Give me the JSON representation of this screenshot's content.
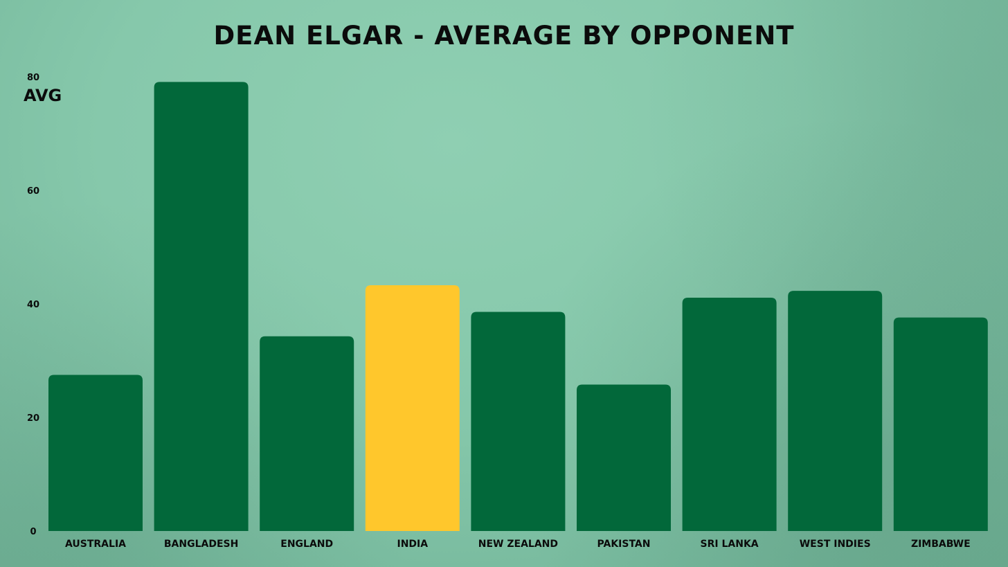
{
  "chart_data": {
    "type": "bar",
    "title": "DEAN ELGAR - AVERAGE BY OPPONENT",
    "xlabel": "",
    "ylabel": "AVG",
    "ylim": [
      0,
      80
    ],
    "yticks": [
      "0",
      "20",
      "40",
      "60",
      "80"
    ],
    "grid": false,
    "categories": [
      "AUSTRALIA",
      "BANGLADESH",
      "ENGLAND",
      "INDIA",
      "NEW ZEALAND",
      "PAKISTAN",
      "SRI LANKA",
      "WEST INDIES",
      "ZIMBABWE"
    ],
    "values": [
      27.5,
      79.1,
      34.3,
      43.3,
      38.6,
      25.8,
      41.1,
      42.3,
      37.6
    ],
    "bar_color": "#02683a",
    "highlight_category": "INDIA",
    "highlight_color": "#ffc72c"
  }
}
